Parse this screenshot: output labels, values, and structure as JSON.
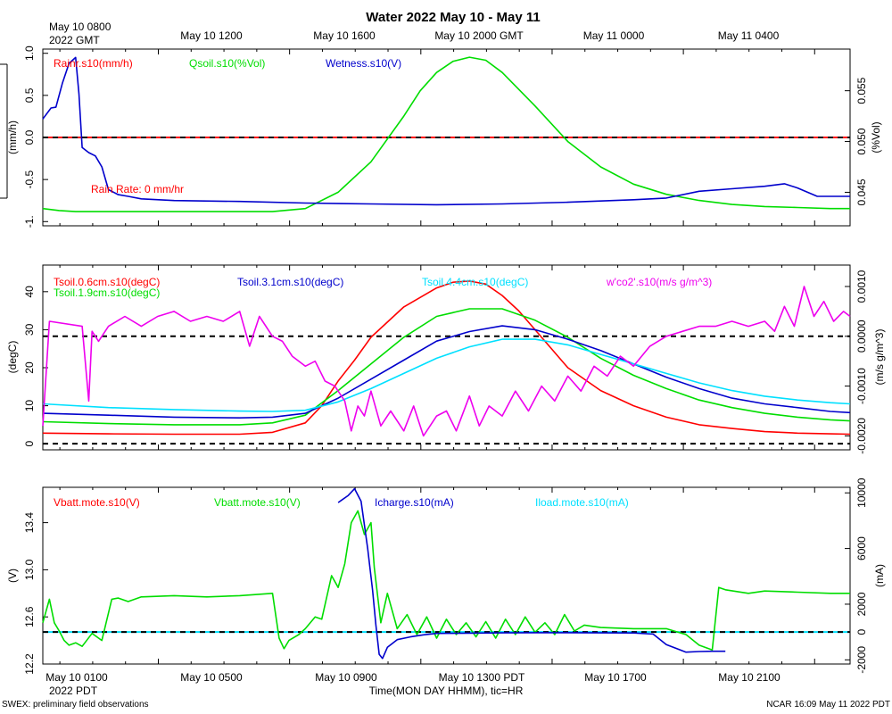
{
  "title": "Water 2022 May 10 - May 11",
  "top_time_labels": [
    "May 10 0800",
    "May 10 1200",
    "May 10 1600",
    "May 10 2000 GMT",
    "May 11 0000",
    "May 11 0400"
  ],
  "top_time_sublabel": "2022 GMT",
  "bottom_time_labels": [
    "May 10 0100",
    "May 10 0500",
    "May 10 0900",
    "May 10 1300 PDT",
    "May 10 1700",
    "May 10 2100"
  ],
  "bottom_time_sublabel": "2022 PDT",
  "xlabel": "Time(MON DAY HHMM), tic=HR",
  "footer_left": "SWEX: preliminary field observations",
  "footer_right": "NCAR 16:09 May 11 2022 PDT",
  "colors": {
    "red": "#ff0000",
    "green": "#00dd00",
    "blue": "#0000cc",
    "cyan": "#00e0ff",
    "magenta": "#ee00ee"
  },
  "chart_data": [
    {
      "type": "line",
      "id": "panel1",
      "x_range_hours": [
        0,
        24.6
      ],
      "left_axis": {
        "label": "(mm/h)",
        "range": [
          -1.05,
          1.05
        ],
        "ticks": [
          1.0,
          0.5,
          0.0,
          -0.5,
          -1.0
        ],
        "tick_labels": [
          "1.0",
          "0.5",
          "0.0",
          "-0.5",
          "-1."
        ]
      },
      "right_axis": {
        "label": "(%Vol)",
        "range": [
          0.0417,
          0.0591
        ],
        "ticks": [
          0.045,
          0.05,
          0.055
        ],
        "tick_labels": [
          "0.045",
          "0.050",
          "0.055"
        ]
      },
      "zero_lines": [
        {
          "axis": "left",
          "value": 0.0,
          "colors": [
            "#ff0000",
            "#000000"
          ]
        }
      ],
      "annotation": "Rain Rate: 0 mm/hr",
      "series": [
        {
          "name": "Rainr.s10(mm/h)",
          "color": "red",
          "axis": "left",
          "x": [],
          "y": []
        },
        {
          "name": "Qsoil.s10(%Vol)",
          "color": "green",
          "axis": "right",
          "x": [
            0,
            0.5,
            1,
            2,
            4,
            6,
            7,
            8,
            9,
            10,
            11,
            11.5,
            12,
            12.5,
            13,
            13.5,
            14,
            15,
            16,
            17,
            18,
            19,
            20,
            21,
            22,
            23,
            24,
            24.6
          ],
          "y": [
            0.0434,
            0.0432,
            0.0431,
            0.0431,
            0.0431,
            0.0431,
            0.0431,
            0.0434,
            0.045,
            0.048,
            0.0525,
            0.055,
            0.0568,
            0.0579,
            0.0583,
            0.058,
            0.0568,
            0.0535,
            0.05,
            0.0475,
            0.0458,
            0.0448,
            0.0442,
            0.0438,
            0.0436,
            0.0435,
            0.0434,
            0.0434
          ]
        },
        {
          "name": "Wetness.s10(V)",
          "color": "blue",
          "axis": "left",
          "x": [
            0,
            0.25,
            0.4,
            0.6,
            0.8,
            1.0,
            1.1,
            1.2,
            1.4,
            1.6,
            1.8,
            2.0,
            2.3,
            2.6,
            3,
            4,
            6,
            8,
            10,
            12,
            14,
            16,
            18,
            19,
            20,
            21,
            22,
            22.6,
            23,
            23.6,
            24,
            24.6
          ],
          "y": [
            0.22,
            0.35,
            0.36,
            0.65,
            0.88,
            0.95,
            0.52,
            -0.12,
            -0.18,
            -0.22,
            -0.35,
            -0.62,
            -0.68,
            -0.7,
            -0.73,
            -0.75,
            -0.76,
            -0.78,
            -0.79,
            -0.8,
            -0.79,
            -0.77,
            -0.74,
            -0.72,
            -0.64,
            -0.61,
            -0.58,
            -0.55,
            -0.6,
            -0.7,
            -0.7,
            -0.7
          ]
        }
      ]
    },
    {
      "type": "line",
      "id": "panel2",
      "x_range_hours": [
        0,
        24.6
      ],
      "left_axis": {
        "label": "(degC)",
        "range": [
          -1.6,
          47.0
        ],
        "ticks": [
          0,
          10,
          20,
          30,
          40
        ],
        "tick_labels": [
          "0",
          "10",
          "20",
          "30",
          "40"
        ]
      },
      "right_axis": {
        "label": "(m/s g/m^3)",
        "range": [
          -0.00228,
          0.00143
        ],
        "ticks": [
          0.001,
          0.0,
          -0.001,
          -0.002
        ],
        "tick_labels": [
          "0.0010",
          "0.0000",
          "-0.0010",
          "-0.0020"
        ]
      },
      "zero_lines": [
        {
          "axis": "left",
          "value": 0
        },
        {
          "axis": "right",
          "value": 0.0
        }
      ],
      "series": [
        {
          "name": "Tsoil.0.6cm.s10(degC)",
          "color": "red",
          "axis": "left",
          "x": [
            0,
            2,
            4,
            6,
            7,
            8,
            8.5,
            9,
            9.5,
            10,
            11,
            12,
            12.5,
            13,
            13.5,
            14,
            14.5,
            15,
            16,
            17,
            18,
            19,
            20,
            21,
            22,
            23,
            24,
            24.6
          ],
          "y": [
            2.8,
            2.6,
            2.5,
            2.5,
            3.0,
            5.5,
            10,
            16.5,
            22,
            28,
            36,
            41,
            42.5,
            42.8,
            42,
            39,
            35,
            30,
            20,
            14,
            10,
            7,
            5,
            4,
            3.2,
            2.8,
            2.6,
            2.5
          ]
        },
        {
          "name": "Tsoil.1.9cm.s10(degC)",
          "color": "green",
          "axis": "left",
          "x": [
            0,
            2,
            4,
            6,
            7,
            8,
            9,
            10,
            11,
            12,
            13,
            14,
            15,
            16,
            17,
            18,
            19,
            20,
            21,
            22,
            23,
            24,
            24.6
          ],
          "y": [
            5.8,
            5.3,
            5.0,
            5.0,
            5.5,
            7.5,
            14,
            21,
            28,
            33.5,
            35.5,
            35.5,
            32.5,
            28,
            22.5,
            18,
            14.5,
            11.5,
            9.5,
            8.0,
            7.0,
            6.3,
            6.0
          ]
        },
        {
          "name": "Tsoil.3.1cm.s10(degC)",
          "color": "blue",
          "axis": "left",
          "x": [
            0,
            2,
            4,
            6,
            7,
            8,
            9,
            10,
            11,
            12,
            13,
            14,
            15,
            16,
            17,
            18,
            19,
            20,
            21,
            22,
            23,
            24,
            24.6
          ],
          "y": [
            8.0,
            7.5,
            7.0,
            6.8,
            7.0,
            8.0,
            12,
            17,
            22,
            27,
            29.5,
            31,
            30,
            27.5,
            24.5,
            21,
            17.5,
            14.5,
            12,
            10.5,
            9.5,
            8.5,
            8.2
          ]
        },
        {
          "name": "Tsoil.4.4cm.s10(degC)",
          "color": "cyan",
          "axis": "left",
          "x": [
            0,
            2,
            4,
            6,
            7,
            8,
            9,
            10,
            11,
            12,
            13,
            14,
            15,
            16,
            17,
            18,
            19,
            20,
            21,
            22,
            23,
            24,
            24.6
          ],
          "y": [
            10.5,
            9.5,
            9.0,
            8.6,
            8.5,
            8.8,
            11,
            14.5,
            18.5,
            22.5,
            25.5,
            27.5,
            27.5,
            26,
            23.5,
            21,
            18.5,
            16,
            14,
            12.5,
            11.5,
            10.8,
            10.5
          ]
        },
        {
          "name": "w'co2'.s10(m/s g/m^3)",
          "color": "magenta",
          "axis": "right",
          "x": [
            0,
            0.2,
            1.2,
            1.4,
            1.5,
            1.7,
            2,
            2.5,
            3,
            3.5,
            4,
            4.5,
            5,
            5.5,
            6,
            6.3,
            6.6,
            7,
            7.3,
            7.6,
            8,
            8.3,
            8.6,
            8.9,
            9.2,
            9.4,
            9.6,
            9.8,
            10,
            10.3,
            10.6,
            11,
            11.3,
            11.6,
            12,
            12.3,
            12.6,
            13,
            13.3,
            13.6,
            14,
            14.4,
            14.8,
            15.2,
            15.6,
            16,
            16.4,
            16.8,
            17.2,
            17.6,
            18,
            18.5,
            19,
            19.5,
            20,
            20.5,
            21,
            21.5,
            22,
            22.3,
            22.6,
            22.9,
            23.2,
            23.5,
            23.8,
            24.1,
            24.4,
            24.6
          ],
          "y": [
            -0.0018,
            0.0003,
            0.0002,
            -0.0013,
            0.0001,
            -0.0001,
            0.0002,
            0.0004,
            0.0002,
            0.0004,
            0.0005,
            0.0003,
            0.0004,
            0.0003,
            0.0005,
            -0.0002,
            0.0004,
            0.0,
            -0.0001,
            -0.0004,
            -0.0006,
            -0.0005,
            -0.0009,
            -0.001,
            -0.0013,
            -0.0019,
            -0.0014,
            -0.0016,
            -0.0011,
            -0.0018,
            -0.0015,
            -0.0019,
            -0.0014,
            -0.002,
            -0.0016,
            -0.0015,
            -0.0019,
            -0.0012,
            -0.0018,
            -0.0014,
            -0.0016,
            -0.0011,
            -0.0015,
            -0.001,
            -0.0013,
            -0.0008,
            -0.0011,
            -0.0006,
            -0.0008,
            -0.0004,
            -0.0006,
            -0.0002,
            0.0,
            0.0001,
            0.0002,
            0.0002,
            0.0003,
            0.0002,
            0.0003,
            0.0001,
            0.0006,
            0.0002,
            0.001,
            0.0004,
            0.0007,
            0.0003,
            0.0005,
            0.0004
          ]
        }
      ]
    },
    {
      "type": "line",
      "id": "panel3",
      "x_range_hours": [
        0,
        24.6
      ],
      "left_axis": {
        "label": "(V)",
        "range": [
          12.2,
          13.7
        ],
        "ticks": [
          12.2,
          12.6,
          13.0,
          13.4
        ],
        "tick_labels": [
          "12.2",
          "12.6",
          "13.0",
          "13.4"
        ]
      },
      "right_axis": {
        "label": "(mA)",
        "range": [
          -2300,
          10400
        ],
        "ticks": [
          10000,
          6000,
          2000,
          0,
          -2000
        ],
        "tick_labels": [
          "10000",
          "6000",
          "2000",
          "0",
          "-2000"
        ]
      },
      "zero_lines": [
        {
          "axis": "right",
          "value": 0,
          "colors": [
            "#00e0ff",
            "#000000"
          ]
        }
      ],
      "series": [
        {
          "name": "Vbatt.mote.s10(V)",
          "color": "red",
          "axis": "left",
          "x": [],
          "y": []
        },
        {
          "name": "Vbatt.mote.s10(V)",
          "color": "green",
          "axis": "left",
          "x": [
            0,
            0.2,
            0.35,
            0.5,
            0.65,
            0.8,
            1.0,
            1.2,
            1.5,
            1.8,
            2.1,
            2.3,
            2.6,
            3,
            4,
            5,
            6,
            7,
            7.2,
            7.35,
            7.5,
            7.8,
            8.0,
            8.3,
            8.5,
            8.8,
            9.0,
            9.2,
            9.4,
            9.6,
            9.8,
            10.0,
            10.1,
            10.3,
            10.5,
            10.8,
            11.1,
            11.4,
            11.7,
            12.0,
            12.3,
            12.6,
            12.9,
            13.2,
            13.5,
            13.8,
            14.1,
            14.4,
            14.7,
            15.0,
            15.3,
            15.6,
            15.9,
            16.2,
            16.5,
            17,
            18,
            19,
            19.6,
            20.0,
            20.4,
            20.6,
            20.8,
            21.5,
            22,
            23,
            24,
            24.6
          ],
          "y": [
            12.55,
            12.75,
            12.55,
            12.48,
            12.4,
            12.36,
            12.38,
            12.35,
            12.46,
            12.4,
            12.75,
            12.76,
            12.73,
            12.77,
            12.78,
            12.77,
            12.78,
            12.8,
            12.42,
            12.33,
            12.4,
            12.45,
            12.5,
            12.6,
            12.58,
            12.95,
            12.85,
            13.05,
            13.4,
            13.5,
            13.3,
            13.4,
            13.02,
            12.55,
            12.8,
            12.5,
            12.62,
            12.45,
            12.6,
            12.42,
            12.58,
            12.45,
            12.55,
            12.43,
            12.56,
            12.42,
            12.58,
            12.45,
            12.6,
            12.47,
            12.55,
            12.45,
            12.62,
            12.48,
            12.53,
            12.51,
            12.5,
            12.5,
            12.45,
            12.36,
            12.32,
            12.85,
            12.83,
            12.8,
            12.82,
            12.81,
            12.8,
            12.8
          ]
        },
        {
          "name": "Icharge.s10(mA)",
          "color": "blue",
          "axis": "right",
          "x": [
            9.0,
            9.3,
            9.5,
            9.7,
            9.9,
            10.05,
            10.15,
            10.25,
            10.35,
            10.5,
            10.8,
            11.2,
            11.6,
            12,
            13,
            14,
            15,
            16,
            17,
            18,
            18.6,
            19,
            19.6,
            20.0,
            20.4,
            20.8
          ],
          "y": [
            9300,
            9800,
            10300,
            9400,
            6000,
            3000,
            500,
            -1600,
            -1900,
            -1100,
            -550,
            -350,
            -200,
            -100,
            -80,
            -60,
            -50,
            -50,
            -60,
            -70,
            -150,
            -900,
            -1450,
            -1400,
            -1380,
            -1380
          ]
        },
        {
          "name": "Iload.mote.s10(mA)",
          "color": "cyan",
          "axis": "right",
          "x": [],
          "y": []
        }
      ]
    }
  ]
}
